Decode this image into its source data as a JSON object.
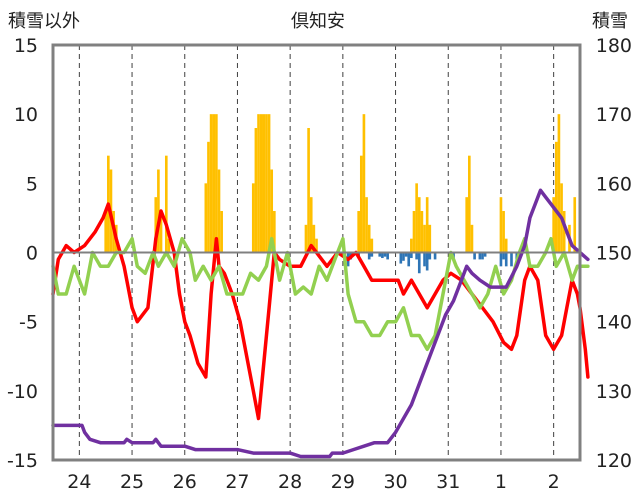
{
  "chart_data": {
    "type": "bar+line",
    "title": "倶知安",
    "left_axis_label": "積雪以外",
    "right_axis_label": "積雪",
    "left_ylim": [
      -15,
      15
    ],
    "left_ticks": [
      "15",
      "10",
      "5",
      "0",
      "-5",
      "-10",
      "-15"
    ],
    "right_ylim": [
      120,
      180
    ],
    "right_ticks": [
      "180",
      "170",
      "160",
      "150",
      "140",
      "130",
      "120"
    ],
    "x_ticks": [
      "24",
      "25",
      "26",
      "27",
      "28",
      "29",
      "30",
      "31",
      "1",
      "2"
    ],
    "x_tick_positions": [
      1,
      2,
      3,
      4,
      5,
      6,
      7,
      8,
      9,
      10
    ],
    "xlim": [
      0.5,
      10.5
    ],
    "grid": "vertical dashed at day ticks",
    "colors": {
      "snowfall_bar": "#FFC000",
      "negative_bar": "#2E75B6",
      "red_line": "#FF0000",
      "green_line": "#92D050",
      "purple_line": "#7030A0",
      "axes": "#808080",
      "grid": "#404040"
    },
    "series": [
      {
        "kind": "bar",
        "axis": "left",
        "color": "#FFC000",
        "points": [
          [
            1.5,
            3
          ],
          [
            1.55,
            7
          ],
          [
            1.6,
            6
          ],
          [
            1.65,
            3
          ],
          [
            1.7,
            2
          ],
          [
            2.45,
            4
          ],
          [
            2.5,
            6
          ],
          [
            2.55,
            3
          ],
          [
            2.65,
            7
          ],
          [
            2.7,
            1
          ],
          [
            3.4,
            5
          ],
          [
            3.45,
            8
          ],
          [
            3.5,
            10
          ],
          [
            3.55,
            10
          ],
          [
            3.6,
            10
          ],
          [
            3.65,
            6
          ],
          [
            3.7,
            3
          ],
          [
            4.3,
            5
          ],
          [
            4.35,
            9
          ],
          [
            4.4,
            10
          ],
          [
            4.45,
            10
          ],
          [
            4.5,
            10
          ],
          [
            4.55,
            10
          ],
          [
            4.6,
            10
          ],
          [
            4.65,
            6
          ],
          [
            4.7,
            3
          ],
          [
            5.3,
            2
          ],
          [
            5.35,
            9
          ],
          [
            5.4,
            4
          ],
          [
            5.45,
            2
          ],
          [
            5.5,
            1
          ],
          [
            6.3,
            3
          ],
          [
            6.35,
            7
          ],
          [
            6.4,
            10
          ],
          [
            6.45,
            4
          ],
          [
            6.5,
            2
          ],
          [
            6.55,
            1
          ],
          [
            7.3,
            1
          ],
          [
            7.35,
            3
          ],
          [
            7.4,
            5
          ],
          [
            7.45,
            4
          ],
          [
            7.5,
            3
          ],
          [
            7.55,
            2
          ],
          [
            7.6,
            4
          ],
          [
            7.65,
            2
          ],
          [
            8.35,
            4
          ],
          [
            8.4,
            7
          ],
          [
            8.45,
            2
          ],
          [
            9.0,
            4
          ],
          [
            9.05,
            3
          ],
          [
            9.1,
            1
          ],
          [
            10.0,
            4
          ],
          [
            10.05,
            8
          ],
          [
            10.1,
            10
          ],
          [
            10.15,
            5
          ],
          [
            10.2,
            3
          ],
          [
            10.3,
            2
          ],
          [
            10.4,
            4
          ]
        ]
      },
      {
        "kind": "bar",
        "axis": "left",
        "color": "#2E75B6",
        "points": [
          [
            6.1,
            -1
          ],
          [
            6.15,
            -0.5
          ],
          [
            6.3,
            -0.3
          ],
          [
            6.5,
            -0.5
          ],
          [
            6.55,
            -0.3
          ],
          [
            6.7,
            -0.3
          ],
          [
            6.75,
            -0.4
          ],
          [
            6.8,
            -0.3
          ],
          [
            6.85,
            -0.5
          ],
          [
            7.1,
            -0.8
          ],
          [
            7.15,
            -0.6
          ],
          [
            7.2,
            -0.3
          ],
          [
            7.25,
            -1
          ],
          [
            7.3,
            -0.4
          ],
          [
            7.4,
            -0.5
          ],
          [
            7.45,
            -1.5
          ],
          [
            7.55,
            -1
          ],
          [
            7.6,
            -1.3
          ],
          [
            7.65,
            -0.5
          ],
          [
            7.75,
            -0.5
          ],
          [
            8.1,
            -0.5
          ],
          [
            8.5,
            -0.5
          ],
          [
            8.6,
            -0.5
          ],
          [
            8.65,
            -0.5
          ],
          [
            8.7,
            -0.3
          ],
          [
            9.0,
            -1
          ],
          [
            9.05,
            -0.5
          ],
          [
            9.1,
            -1
          ],
          [
            9.2,
            -1
          ],
          [
            9.3,
            -0.8
          ]
        ]
      },
      {
        "kind": "line",
        "axis": "left",
        "color": "#FF0000",
        "points": [
          [
            0.5,
            -3
          ],
          [
            0.6,
            -0.5
          ],
          [
            0.75,
            0.5
          ],
          [
            0.9,
            0
          ],
          [
            1.1,
            0.5
          ],
          [
            1.3,
            1.5
          ],
          [
            1.45,
            2.5
          ],
          [
            1.55,
            3.5
          ],
          [
            1.7,
            1
          ],
          [
            1.85,
            -1
          ],
          [
            2.0,
            -4
          ],
          [
            2.1,
            -5
          ],
          [
            2.3,
            -4
          ],
          [
            2.45,
            1
          ],
          [
            2.55,
            3
          ],
          [
            2.65,
            2
          ],
          [
            2.8,
            0
          ],
          [
            2.9,
            -3
          ],
          [
            3.0,
            -5
          ],
          [
            3.1,
            -6
          ],
          [
            3.25,
            -8
          ],
          [
            3.4,
            -9
          ],
          [
            3.5,
            -3
          ],
          [
            3.6,
            1
          ],
          [
            3.65,
            -1
          ],
          [
            3.75,
            -1.5
          ],
          [
            3.9,
            -3
          ],
          [
            4.05,
            -5
          ],
          [
            4.2,
            -8
          ],
          [
            4.3,
            -10
          ],
          [
            4.4,
            -12
          ],
          [
            4.5,
            -8
          ],
          [
            4.6,
            -4
          ],
          [
            4.7,
            0
          ],
          [
            4.8,
            -0.5
          ],
          [
            5.0,
            -1
          ],
          [
            5.2,
            -1
          ],
          [
            5.4,
            0.5
          ],
          [
            5.5,
            0
          ],
          [
            5.7,
            -1
          ],
          [
            5.9,
            0
          ],
          [
            6.1,
            -0.5
          ],
          [
            6.25,
            0
          ],
          [
            6.4,
            -1
          ],
          [
            6.55,
            -2
          ],
          [
            6.75,
            -2
          ],
          [
            6.9,
            -2
          ],
          [
            7.05,
            -2
          ],
          [
            7.15,
            -3
          ],
          [
            7.3,
            -2
          ],
          [
            7.45,
            -3
          ],
          [
            7.6,
            -4
          ],
          [
            7.75,
            -3
          ],
          [
            7.9,
            -2
          ],
          [
            8.05,
            -1.5
          ],
          [
            8.25,
            -2
          ],
          [
            8.45,
            -3
          ],
          [
            8.65,
            -4
          ],
          [
            8.85,
            -5
          ],
          [
            9.05,
            -6.5
          ],
          [
            9.2,
            -7
          ],
          [
            9.3,
            -6
          ],
          [
            9.45,
            -2
          ],
          [
            9.55,
            -1
          ],
          [
            9.7,
            -2
          ],
          [
            9.85,
            -6
          ],
          [
            10.0,
            -7
          ],
          [
            10.15,
            -6
          ],
          [
            10.25,
            -4
          ],
          [
            10.35,
            -2
          ],
          [
            10.45,
            -3
          ],
          [
            10.5,
            -4
          ],
          [
            10.6,
            -7
          ],
          [
            10.65,
            -9
          ]
        ]
      },
      {
        "kind": "line",
        "axis": "left",
        "color": "#92D050",
        "points": [
          [
            0.5,
            -1
          ],
          [
            0.6,
            -3
          ],
          [
            0.75,
            -3
          ],
          [
            0.9,
            -1
          ],
          [
            1.1,
            -3
          ],
          [
            1.25,
            0
          ],
          [
            1.4,
            -1
          ],
          [
            1.55,
            -1
          ],
          [
            1.7,
            0
          ],
          [
            1.85,
            0
          ],
          [
            2.0,
            1
          ],
          [
            2.1,
            -1
          ],
          [
            2.25,
            -1.5
          ],
          [
            2.4,
            0
          ],
          [
            2.5,
            -1
          ],
          [
            2.65,
            0
          ],
          [
            2.8,
            -1
          ],
          [
            2.95,
            1
          ],
          [
            3.1,
            0
          ],
          [
            3.2,
            -2
          ],
          [
            3.35,
            -1
          ],
          [
            3.5,
            -2
          ],
          [
            3.65,
            -1
          ],
          [
            3.8,
            -3
          ],
          [
            3.95,
            -3
          ],
          [
            4.1,
            -3
          ],
          [
            4.25,
            -1.5
          ],
          [
            4.4,
            -2
          ],
          [
            4.55,
            -1
          ],
          [
            4.65,
            1
          ],
          [
            4.8,
            -2
          ],
          [
            4.95,
            0
          ],
          [
            5.1,
            -3
          ],
          [
            5.25,
            -2.5
          ],
          [
            5.4,
            -3
          ],
          [
            5.55,
            -1
          ],
          [
            5.7,
            -2
          ],
          [
            5.85,
            -0.5
          ],
          [
            6.0,
            1
          ],
          [
            6.1,
            -3
          ],
          [
            6.25,
            -5
          ],
          [
            6.4,
            -5
          ],
          [
            6.55,
            -6
          ],
          [
            6.7,
            -6
          ],
          [
            6.85,
            -5
          ],
          [
            7.0,
            -5
          ],
          [
            7.15,
            -4
          ],
          [
            7.3,
            -6
          ],
          [
            7.45,
            -6
          ],
          [
            7.6,
            -7
          ],
          [
            7.75,
            -6
          ],
          [
            7.9,
            -3
          ],
          [
            8.05,
            0
          ],
          [
            8.15,
            -1
          ],
          [
            8.3,
            -2
          ],
          [
            8.45,
            -3
          ],
          [
            8.6,
            -4
          ],
          [
            8.75,
            -3
          ],
          [
            8.9,
            -1
          ],
          [
            9.05,
            -3
          ],
          [
            9.2,
            -2
          ],
          [
            9.35,
            0
          ],
          [
            9.45,
            1
          ],
          [
            9.55,
            -1
          ],
          [
            9.7,
            -1
          ],
          [
            9.85,
            0
          ],
          [
            9.95,
            1
          ],
          [
            10.05,
            -1
          ],
          [
            10.2,
            0
          ],
          [
            10.35,
            -2
          ],
          [
            10.45,
            -1
          ],
          [
            10.6,
            -1
          ],
          [
            10.65,
            -1
          ]
        ]
      },
      {
        "kind": "line",
        "axis": "right",
        "color": "#7030A0",
        "points": [
          [
            0.5,
            125
          ],
          [
            1.05,
            125
          ],
          [
            1.1,
            124
          ],
          [
            1.2,
            123
          ],
          [
            1.4,
            122.5
          ],
          [
            1.6,
            122.5
          ],
          [
            1.85,
            122.5
          ],
          [
            1.9,
            123
          ],
          [
            2.0,
            122.5
          ],
          [
            2.4,
            122.5
          ],
          [
            2.45,
            123
          ],
          [
            2.55,
            122
          ],
          [
            2.8,
            122
          ],
          [
            3.0,
            122
          ],
          [
            3.2,
            121.5
          ],
          [
            3.6,
            121.5
          ],
          [
            4.0,
            121.5
          ],
          [
            4.3,
            121
          ],
          [
            4.7,
            121
          ],
          [
            5.0,
            121
          ],
          [
            5.2,
            120.5
          ],
          [
            5.5,
            120.5
          ],
          [
            5.75,
            120.5
          ],
          [
            5.8,
            121
          ],
          [
            6.0,
            121
          ],
          [
            6.2,
            121.5
          ],
          [
            6.4,
            122
          ],
          [
            6.6,
            122.5
          ],
          [
            6.85,
            122.5
          ],
          [
            7.0,
            124
          ],
          [
            7.15,
            126
          ],
          [
            7.3,
            128
          ],
          [
            7.5,
            132
          ],
          [
            7.65,
            135
          ],
          [
            7.8,
            138
          ],
          [
            7.95,
            141
          ],
          [
            8.1,
            143
          ],
          [
            8.25,
            146
          ],
          [
            8.35,
            148
          ],
          [
            8.45,
            147
          ],
          [
            8.6,
            146
          ],
          [
            8.8,
            145
          ],
          [
            9.1,
            145
          ],
          [
            9.3,
            148
          ],
          [
            9.45,
            151
          ],
          [
            9.55,
            155
          ],
          [
            9.65,
            157
          ],
          [
            9.75,
            159
          ],
          [
            9.85,
            158
          ],
          [
            9.95,
            157
          ],
          [
            10.05,
            156
          ],
          [
            10.15,
            155
          ],
          [
            10.25,
            153
          ],
          [
            10.35,
            151
          ],
          [
            10.5,
            150
          ],
          [
            10.65,
            149
          ]
        ]
      }
    ]
  }
}
